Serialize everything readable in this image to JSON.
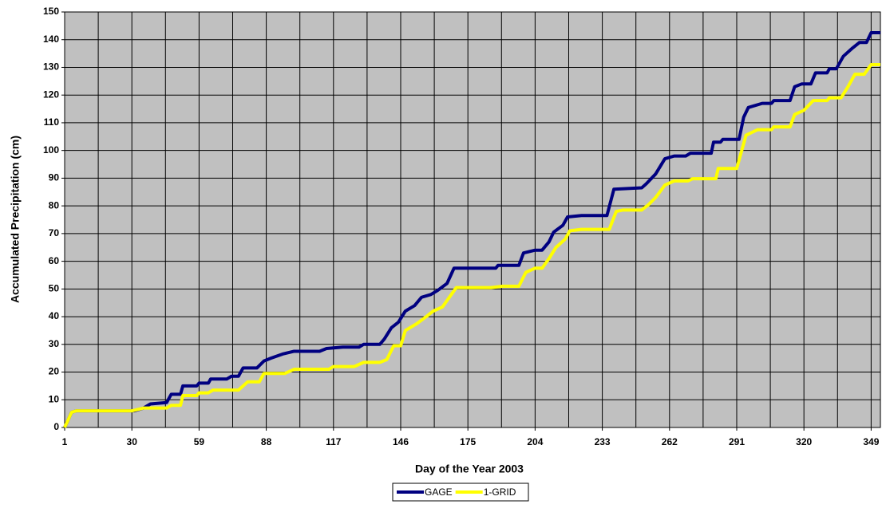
{
  "chart_data": {
    "type": "line",
    "x_label": "Day of the Year 2003",
    "y_label": "Accumulated Precipitation (cm)",
    "xlim": [
      1,
      353
    ],
    "xticks": [
      1,
      30,
      59,
      88,
      117,
      146,
      175,
      204,
      233,
      262,
      291,
      320,
      349
    ],
    "ylim": [
      0,
      150
    ],
    "yticks": [
      0,
      10,
      20,
      30,
      40,
      50,
      60,
      70,
      80,
      90,
      100,
      110,
      120,
      130,
      140,
      150
    ],
    "grid": true,
    "legend": "bottom",
    "series": [
      {
        "name": "GAGE",
        "color": "#000080",
        "x": [
          1,
          4,
          6,
          31,
          35,
          38,
          45,
          47,
          51,
          52,
          58,
          59,
          63,
          64,
          71,
          73,
          76,
          78,
          84,
          87,
          90,
          95,
          100,
          111,
          114,
          121,
          128,
          130,
          137,
          139,
          142,
          145,
          148,
          152,
          155,
          159,
          162,
          166,
          169,
          187,
          188,
          197,
          199,
          204,
          207,
          210,
          212,
          216,
          218,
          224,
          235,
          238,
          250,
          252,
          256,
          260,
          264,
          269,
          271,
          280,
          281,
          284,
          285,
          292,
          294,
          296,
          302,
          306,
          307,
          314,
          316,
          319,
          323,
          325,
          330,
          331,
          334,
          337,
          341,
          344,
          347,
          349,
          353
        ],
        "values": [
          0,
          5.5,
          6,
          6,
          7,
          8.5,
          9,
          12,
          12,
          15,
          15,
          16,
          16,
          17.5,
          17.5,
          18.5,
          18.5,
          21.5,
          21.5,
          24,
          25,
          26.5,
          27.5,
          27.5,
          28.5,
          29,
          29,
          30,
          30,
          32,
          36,
          38,
          42,
          44,
          47,
          48,
          49.5,
          52,
          57.5,
          57.5,
          58.5,
          58.5,
          63,
          64,
          64,
          67,
          70.5,
          73,
          76,
          76.5,
          76.5,
          86,
          86.5,
          88,
          91.5,
          97,
          98,
          98,
          99,
          99,
          103,
          103,
          104,
          104,
          112,
          115.5,
          117,
          117,
          118,
          118,
          123,
          124,
          124,
          128,
          128,
          129.5,
          129.5,
          134,
          137,
          139,
          139,
          142.5,
          142.5
        ]
      },
      {
        "name": "1-GRID",
        "color": "#ffff00",
        "x": [
          1,
          4,
          6,
          30,
          35,
          45,
          47,
          51,
          52,
          58,
          59,
          63,
          65,
          76,
          80,
          85,
          87,
          96,
          100,
          115,
          117,
          126,
          130,
          137,
          140,
          143,
          146,
          148,
          153,
          157,
          160,
          164,
          170,
          185,
          190,
          197,
          200,
          204,
          207,
          210,
          213,
          217,
          219,
          224,
          236,
          239,
          242,
          250,
          253,
          256,
          260,
          264,
          270,
          272,
          282,
          283,
          291,
          295,
          300,
          306,
          307,
          314,
          316,
          320,
          324,
          330,
          331,
          336,
          339,
          342,
          346,
          349,
          353
        ],
        "values": [
          0,
          5.5,
          6,
          6,
          7,
          7,
          8,
          8,
          11.5,
          11.5,
          12.5,
          12.5,
          13.5,
          13.5,
          16.5,
          16.5,
          19.5,
          19.5,
          21,
          21,
          22,
          22,
          23.5,
          23.5,
          24.5,
          29.5,
          29.5,
          35,
          37.5,
          40,
          42,
          43.5,
          50.5,
          50.5,
          51,
          51,
          56,
          57.5,
          57.5,
          61,
          65,
          68,
          71,
          71.5,
          71.5,
          78,
          78.5,
          78.5,
          80.5,
          83,
          87.5,
          89,
          89,
          89.8,
          89.8,
          93.5,
          93.5,
          105.5,
          107.5,
          107.5,
          108.5,
          108.5,
          113,
          114.5,
          118,
          118,
          119,
          119,
          123,
          127.5,
          127.5,
          131,
          131
        ]
      }
    ]
  }
}
